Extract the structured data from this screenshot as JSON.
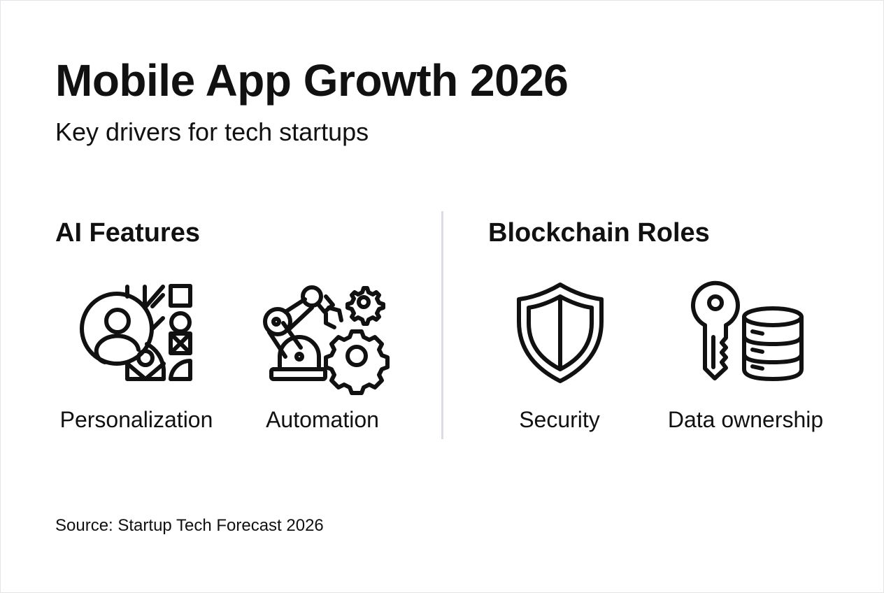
{
  "title": "Mobile App Growth 2026",
  "subtitle": "Key drivers for tech startups",
  "sections": [
    {
      "heading": "AI Features",
      "items": [
        {
          "label": "Personalization",
          "icon": "personalization-icon"
        },
        {
          "label": "Automation",
          "icon": "robot-arm-gears-icon"
        }
      ]
    },
    {
      "heading": "Blockchain Roles",
      "items": [
        {
          "label": "Security",
          "icon": "shield-icon"
        },
        {
          "label": "Data ownership",
          "icon": "key-database-icon"
        }
      ]
    }
  ],
  "source": "Source: Startup Tech Forecast 2026"
}
